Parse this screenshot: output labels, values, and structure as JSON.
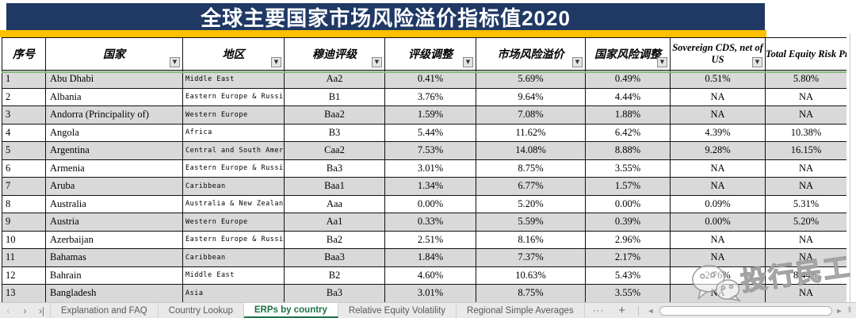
{
  "title": "全球主要国家市场风险溢价指标值2020",
  "colors": {
    "navy": "#1F3864",
    "yellow": "#FFC000",
    "stripe": "#D9D9D9",
    "tab_green": "#1E7145",
    "freeze_green": "#84BD7A"
  },
  "icons": {
    "filter_glyph": "▼",
    "nav_prev": "‹",
    "nav_next": "›",
    "nav_last": "›|",
    "scroll_left": "◄",
    "scroll_right": "►",
    "resize": "‖"
  },
  "table": {
    "columns": [
      {
        "label": "序号",
        "filter": false,
        "lang": "zh"
      },
      {
        "label": "国家",
        "filter": true,
        "lang": "zh"
      },
      {
        "label": "地区",
        "filter": true,
        "lang": "zh"
      },
      {
        "label": "穆迪评级",
        "filter": true,
        "lang": "zh"
      },
      {
        "label": "评级调整",
        "filter": true,
        "lang": "zh"
      },
      {
        "label": "市场风险溢价",
        "filter": true,
        "lang": "zh"
      },
      {
        "label": "国家风险调整",
        "filter": true,
        "lang": "zh"
      },
      {
        "label": "Sovereign CDS, net of US",
        "filter": true,
        "lang": "en"
      },
      {
        "label": "Total Equity Risk Premium",
        "filter": false,
        "lang": "en-total"
      }
    ],
    "rows": [
      [
        "1",
        "Abu Dhabi",
        "Middle East",
        "Aa2",
        "0.41%",
        "5.69%",
        "0.49%",
        "0.51%",
        "5.80%"
      ],
      [
        "2",
        "Albania",
        "Eastern Europe & Russia",
        "B1",
        "3.76%",
        "9.64%",
        "4.44%",
        "NA",
        "NA"
      ],
      [
        "3",
        "Andorra (Principality of)",
        "Western Europe",
        "Baa2",
        "1.59%",
        "7.08%",
        "1.88%",
        "NA",
        "NA"
      ],
      [
        "4",
        "Angola",
        "Africa",
        "B3",
        "5.44%",
        "11.62%",
        "6.42%",
        "4.39%",
        "10.38%"
      ],
      [
        "5",
        "Argentina",
        "Central and South America",
        "Caa2",
        "7.53%",
        "14.08%",
        "8.88%",
        "9.28%",
        "16.15%"
      ],
      [
        "6",
        "Armenia",
        "Eastern Europe & Russia",
        "Ba3",
        "3.01%",
        "8.75%",
        "3.55%",
        "NA",
        "NA"
      ],
      [
        "7",
        "Aruba",
        "Caribbean",
        "Baa1",
        "1.34%",
        "6.77%",
        "1.57%",
        "NA",
        "NA"
      ],
      [
        "8",
        "Australia",
        "Australia & New Zealand",
        "Aaa",
        "0.00%",
        "5.20%",
        "0.00%",
        "0.09%",
        "5.31%"
      ],
      [
        "9",
        "Austria",
        "Western Europe",
        "Aa1",
        "0.33%",
        "5.59%",
        "0.39%",
        "0.00%",
        "5.20%"
      ],
      [
        "10",
        "Azerbaijan",
        "Eastern Europe & Russia",
        "Ba2",
        "2.51%",
        "8.16%",
        "2.96%",
        "NA",
        "NA"
      ],
      [
        "11",
        "Bahamas",
        "Caribbean",
        "Baa3",
        "1.84%",
        "7.37%",
        "2.17%",
        "NA",
        "NA"
      ],
      [
        "12",
        "Bahrain",
        "Middle East",
        "B2",
        "4.60%",
        "10.63%",
        "5.43%",
        "2.76%",
        "8.44%"
      ],
      [
        "13",
        "Bangladesh",
        "Asia",
        "Ba3",
        "3.01%",
        "8.75%",
        "3.55%",
        "NA",
        "NA"
      ]
    ]
  },
  "sheet_tabs": {
    "tabs": [
      {
        "label": "Explanation and FAQ",
        "active": false
      },
      {
        "label": "Country Lookup",
        "active": false
      },
      {
        "label": "ERPs by country",
        "active": true
      },
      {
        "label": "Relative Equity Volatility",
        "active": false
      },
      {
        "label": "Regional Simple Averages",
        "active": false
      }
    ],
    "more_label": "···",
    "add_label": "+"
  },
  "watermark": {
    "text": "投行民工"
  }
}
